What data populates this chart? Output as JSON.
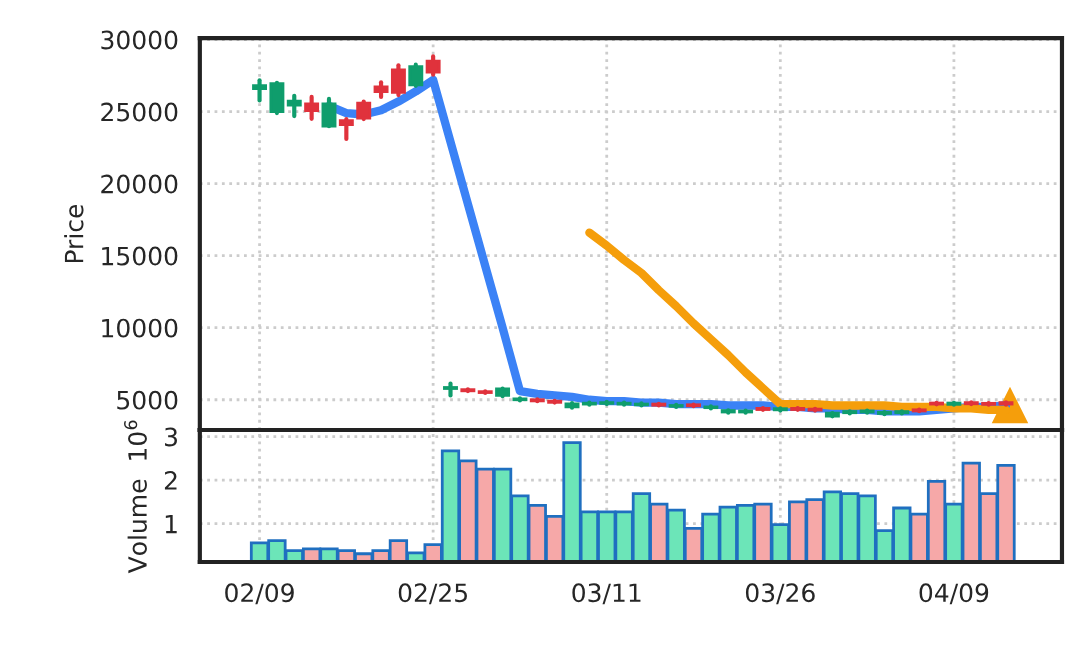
{
  "chart_data": [
    {
      "type": "candlestick",
      "ylabel": "Price",
      "categories": [
        null,
        null,
        null,
        null,
        null,
        null,
        null,
        null,
        null,
        null,
        null,
        null,
        null,
        null,
        null,
        null,
        null,
        null,
        null,
        null,
        null,
        null,
        null,
        null,
        null,
        null,
        null,
        null,
        null,
        null,
        null,
        null,
        null,
        null,
        null,
        null,
        null,
        null,
        null,
        null,
        null,
        null,
        null,
        null
      ],
      "ohlc": [
        [
          26600,
          27180,
          25780,
          26800
        ],
        [
          25000,
          27000,
          24900,
          26950
        ],
        [
          25450,
          26100,
          24690,
          25730
        ],
        [
          25540,
          26020,
          24500,
          25070
        ],
        [
          24000,
          25880,
          23990,
          25540
        ],
        [
          24370,
          24480,
          23100,
          24090
        ],
        [
          25590,
          25700,
          24480,
          24550
        ],
        [
          26720,
          27040,
          26020,
          26380
        ],
        [
          27890,
          28210,
          26150,
          26340
        ],
        [
          26860,
          28260,
          26790,
          28120
        ],
        [
          28500,
          28830,
          27560,
          27750
        ],
        [
          5780,
          6130,
          5300,
          5850
        ],
        [
          5700,
          5720,
          5600,
          5620
        ],
        [
          5560,
          5580,
          5470,
          5500
        ],
        [
          5300,
          5780,
          5250,
          5760
        ],
        [
          5000,
          5100,
          4950,
          5060
        ],
        [
          5000,
          5020,
          4900,
          4920
        ],
        [
          4900,
          4920,
          4800,
          4820
        ],
        [
          4500,
          4760,
          4450,
          4720
        ],
        [
          4700,
          4800,
          4650,
          4760
        ],
        [
          4750,
          4850,
          4700,
          4800
        ],
        [
          4700,
          4800,
          4650,
          4760
        ],
        [
          4650,
          4750,
          4600,
          4700
        ],
        [
          4700,
          4720,
          4600,
          4620
        ],
        [
          4550,
          4650,
          4500,
          4600
        ],
        [
          4650,
          4670,
          4550,
          4580
        ],
        [
          4450,
          4550,
          4400,
          4500
        ],
        [
          4150,
          4260,
          4100,
          4250
        ],
        [
          4150,
          4250,
          4100,
          4220
        ],
        [
          4400,
          4420,
          4300,
          4320
        ],
        [
          4300,
          4400,
          4250,
          4380
        ],
        [
          4400,
          4420,
          4300,
          4320
        ],
        [
          4350,
          4370,
          4250,
          4280
        ],
        [
          3870,
          4080,
          3850,
          4070
        ],
        [
          4100,
          4200,
          4050,
          4180
        ],
        [
          4150,
          4250,
          4100,
          4220
        ],
        [
          4050,
          4150,
          4000,
          4120
        ],
        [
          4100,
          4200,
          4050,
          4180
        ],
        [
          4300,
          4320,
          4200,
          4220
        ],
        [
          4770,
          4790,
          4680,
          4700
        ],
        [
          4680,
          4780,
          4650,
          4770
        ],
        [
          4800,
          4820,
          4700,
          4720
        ],
        [
          4750,
          4770,
          4650,
          4680
        ],
        [
          4800,
          4820,
          4650,
          4700
        ]
      ],
      "colors": [
        "#0f9d6c",
        "#0f9d6c",
        "#0f9d6c",
        "#e0323c",
        "#0f9d6c",
        "#e0323c",
        "#e0323c",
        "#e0323c",
        "#e0323c",
        "#0f9d6c",
        "#e0323c",
        "#0f9d6c",
        "#e0323c",
        "#e0323c",
        "#0f9d6c",
        "#0f9d6c",
        "#e0323c",
        "#e0323c",
        "#0f9d6c",
        "#0f9d6c",
        "#0f9d6c",
        "#0f9d6c",
        "#0f9d6c",
        "#e0323c",
        "#0f9d6c",
        "#e0323c",
        "#0f9d6c",
        "#0f9d6c",
        "#0f9d6c",
        "#e0323c",
        "#0f9d6c",
        "#e0323c",
        "#e0323c",
        "#0f9d6c",
        "#0f9d6c",
        "#0f9d6c",
        "#0f9d6c",
        "#0f9d6c",
        "#e0323c",
        "#e0323c",
        "#0f9d6c",
        "#e0323c",
        "#e0323c",
        "#e0323c"
      ],
      "series": [
        {
          "type": "line",
          "color": "#3b82f6",
          "values": [
            null,
            null,
            null,
            null,
            25400,
            24900,
            24800,
            25100,
            25700,
            26400,
            27200,
            22900,
            18600,
            14300,
            10000,
            5600,
            5400,
            5300,
            5200,
            5000,
            4900,
            4900,
            4800,
            4800,
            4700,
            4700,
            4700,
            4600,
            4600,
            4600,
            4500,
            4500,
            4400,
            4400,
            4300,
            4300,
            4200,
            4200,
            4200,
            4300,
            4400,
            4500,
            4500,
            4600
          ]
        },
        {
          "type": "line",
          "color": "#f59e0b",
          "values": [
            null,
            null,
            null,
            null,
            null,
            null,
            null,
            null,
            null,
            null,
            null,
            null,
            null,
            null,
            null,
            null,
            null,
            null,
            null,
            16600,
            15700,
            14700,
            13800,
            12600,
            11500,
            10300,
            9200,
            8100,
            6900,
            5800,
            4700,
            4700,
            4700,
            4600,
            4600,
            4600,
            4600,
            4500,
            4500,
            4500,
            4400,
            4400,
            4300,
            4300
          ]
        }
      ],
      "ylim": [
        2900,
        30100
      ],
      "yticks": [
        5000,
        10000,
        15000,
        20000,
        25000,
        30000
      ],
      "grid": true,
      "tick_labels": "y"
    },
    {
      "type": "bar",
      "ylabel": "Volume  10$^{6}$",
      "categories": [
        "02/09",
        null,
        null,
        null,
        null,
        null,
        null,
        null,
        null,
        null,
        "02/25",
        null,
        null,
        null,
        null,
        null,
        null,
        null,
        null,
        null,
        "03/11",
        null,
        null,
        null,
        null,
        null,
        null,
        null,
        null,
        null,
        "03/26",
        null,
        null,
        null,
        null,
        null,
        null,
        null,
        null,
        null,
        "04/09",
        null,
        null,
        null
      ],
      "values": [
        0.56,
        0.61,
        0.38,
        0.42,
        0.42,
        0.38,
        0.31,
        0.38,
        0.61,
        0.33,
        0.52,
        2.67,
        2.44,
        2.25,
        2.25,
        1.64,
        1.42,
        1.17,
        2.86,
        1.27,
        1.27,
        1.27,
        1.69,
        1.45,
        1.31,
        0.89,
        1.22,
        1.38,
        1.42,
        1.45,
        0.98,
        1.5,
        1.55,
        1.73,
        1.69,
        1.64,
        0.84,
        1.36,
        1.22,
        1.97,
        1.45,
        2.39,
        1.69,
        2.34
      ],
      "colors": [
        "#6ce5b8",
        "#6ce5b8",
        "#6ce5b8",
        "#f6a8a8",
        "#6ce5b8",
        "#f6a8a8",
        "#f6a8a8",
        "#f6a8a8",
        "#f6a8a8",
        "#6ce5b8",
        "#f6a8a8",
        "#6ce5b8",
        "#f6a8a8",
        "#f6a8a8",
        "#6ce5b8",
        "#6ce5b8",
        "#f6a8a8",
        "#f6a8a8",
        "#6ce5b8",
        "#6ce5b8",
        "#6ce5b8",
        "#6ce5b8",
        "#6ce5b8",
        "#f6a8a8",
        "#6ce5b8",
        "#f6a8a8",
        "#6ce5b8",
        "#6ce5b8",
        "#6ce5b8",
        "#f6a8a8",
        "#6ce5b8",
        "#f6a8a8",
        "#f6a8a8",
        "#6ce5b8",
        "#6ce5b8",
        "#6ce5b8",
        "#6ce5b8",
        "#6ce5b8",
        "#f6a8a8",
        "#f6a8a8",
        "#6ce5b8",
        "#f6a8a8",
        "#f6a8a8",
        "#f6a8a8"
      ],
      "ylim": [
        0.12,
        3.15
      ],
      "yticks": [
        1,
        2,
        3
      ],
      "grid": true
    }
  ]
}
